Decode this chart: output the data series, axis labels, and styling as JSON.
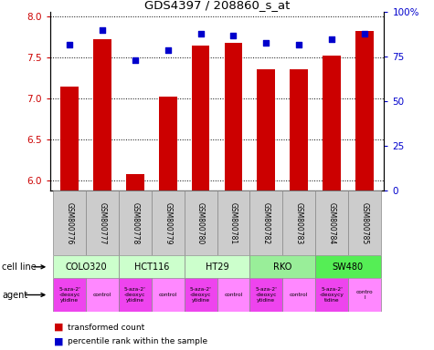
{
  "title": "GDS4397 / 208860_s_at",
  "samples": [
    "GSM800776",
    "GSM800777",
    "GSM800778",
    "GSM800779",
    "GSM800780",
    "GSM800781",
    "GSM800782",
    "GSM800783",
    "GSM800784",
    "GSM800785"
  ],
  "transformed_count": [
    7.15,
    7.72,
    6.08,
    7.02,
    7.65,
    7.68,
    7.36,
    7.36,
    7.52,
    7.82
  ],
  "percentile_rank": [
    82,
    90,
    73,
    79,
    88,
    87,
    83,
    82,
    85,
    88
  ],
  "ylim_left": [
    5.88,
    8.05
  ],
  "ylim_right": [
    0,
    100
  ],
  "yticks_left": [
    6.0,
    6.5,
    7.0,
    7.5,
    8.0
  ],
  "yticks_right": [
    0,
    25,
    50,
    75,
    100
  ],
  "bar_color": "#cc0000",
  "dot_color": "#0000cc",
  "bar_bottom": 5.88,
  "cell_line_groups": [
    {
      "label": "COLO320",
      "indices": [
        0,
        1
      ],
      "color": "#ccffcc"
    },
    {
      "label": "HCT116",
      "indices": [
        2,
        3
      ],
      "color": "#ccffcc"
    },
    {
      "label": "HT29",
      "indices": [
        4,
        5
      ],
      "color": "#ccffcc"
    },
    {
      "label": "RKO",
      "indices": [
        6,
        7
      ],
      "color": "#99ee99"
    },
    {
      "label": "SW480",
      "indices": [
        8,
        9
      ],
      "color": "#55ee55"
    }
  ],
  "agent_labels": [
    "5-aza-2'\n-deoxyc\nytidine",
    "control",
    "5-aza-2'\n-deoxyc\nytidine",
    "control",
    "5-aza-2'\n-deoxyc\nytidine",
    "control",
    "5-aza-2'\n-deoxyc\nytidine",
    "control",
    "5-aza-2'\n-deoxycy\ntidine",
    "contro\nl"
  ],
  "agent_colors": [
    "#ee44ee",
    "#ff88ff",
    "#ee44ee",
    "#ff88ff",
    "#ee44ee",
    "#ff88ff",
    "#ee44ee",
    "#ff88ff",
    "#ee44ee",
    "#ff88ff"
  ],
  "legend_red": "transformed count",
  "legend_blue": "percentile rank within the sample",
  "tick_color_left": "#cc0000",
  "tick_color_right": "#0000cc",
  "sample_bg": "#cccccc"
}
